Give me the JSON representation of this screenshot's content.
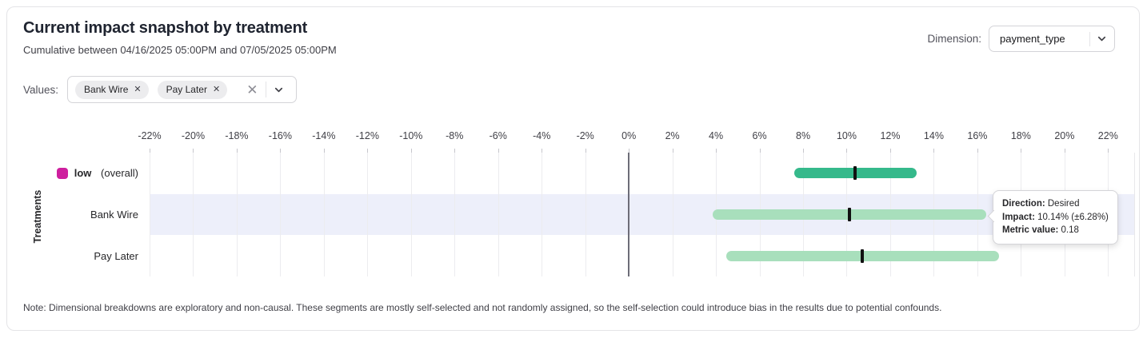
{
  "header": {
    "title": "Current impact snapshot by treatment",
    "subtitle": "Cumulative between 04/16/2025 05:00PM and 07/05/2025 05:00PM",
    "dimension_label": "Dimension:",
    "dimension_value": "payment_type"
  },
  "filters": {
    "values_label": "Values:",
    "chips": [
      {
        "label": "Bank Wire",
        "remove_icon": "✕"
      },
      {
        "label": "Pay Later",
        "remove_icon": "✕"
      }
    ],
    "clear_icon": "✕"
  },
  "chart_data": {
    "type": "interval",
    "ylabel": "Treatments",
    "xlim": [
      -22,
      23.2
    ],
    "x_tick_unit": "%",
    "ticks": [
      {
        "value": -22,
        "label": "-22%"
      },
      {
        "value": -20,
        "label": "-20%"
      },
      {
        "value": -18,
        "label": "-18%"
      },
      {
        "value": -16,
        "label": "-16%"
      },
      {
        "value": -14,
        "label": "-14%"
      },
      {
        "value": -12,
        "label": "-12%"
      },
      {
        "value": -10,
        "label": "-10%"
      },
      {
        "value": -8,
        "label": "-8%"
      },
      {
        "value": -6,
        "label": "-6%"
      },
      {
        "value": -4,
        "label": "-4%"
      },
      {
        "value": -2,
        "label": "-2%"
      },
      {
        "value": 0,
        "label": "0%"
      },
      {
        "value": 2,
        "label": "2%"
      },
      {
        "value": 4,
        "label": "4%"
      },
      {
        "value": 6,
        "label": "6%"
      },
      {
        "value": 8,
        "label": "8%"
      },
      {
        "value": 10,
        "label": "10%"
      },
      {
        "value": 12,
        "label": "12%"
      },
      {
        "value": 14,
        "label": "14%"
      },
      {
        "value": 16,
        "label": "16%"
      },
      {
        "value": 18,
        "label": "18%"
      },
      {
        "value": 20,
        "label": "20%"
      },
      {
        "value": 22,
        "label": "22%"
      }
    ],
    "zero_line": 0,
    "rows": [
      {
        "label": "low",
        "label_note": "(overall)",
        "label_bold": true,
        "swatch_color": "#ce1f9e",
        "bar_color": "#35b98b",
        "impact_pct": 10.4,
        "ci_pct": 2.8,
        "highlighted": false
      },
      {
        "label": "Bank Wire",
        "label_bold": false,
        "bar_color": "#a8dfbc",
        "impact_pct": 10.14,
        "ci_pct": 6.28,
        "highlighted": true
      },
      {
        "label": "Pay Later",
        "label_bold": false,
        "bar_color": "#a8dfbc",
        "impact_pct": 10.73,
        "ci_pct": 6.27,
        "highlighted": false
      }
    ],
    "marker_color": "#111111",
    "highlight_band_color": "#edeffa",
    "tooltip": {
      "lines": [
        {
          "label": "Direction:",
          "value": "Desired"
        },
        {
          "label": "Impact:",
          "value": "10.14% (±6.28%)"
        },
        {
          "label": "Metric value:",
          "value": "0.18"
        }
      ]
    }
  },
  "note": "Note: Dimensional breakdowns are exploratory and non-causal. These segments are mostly self-selected and not randomly assigned, so the self-selection could introduce bias in the results due to potential confounds."
}
